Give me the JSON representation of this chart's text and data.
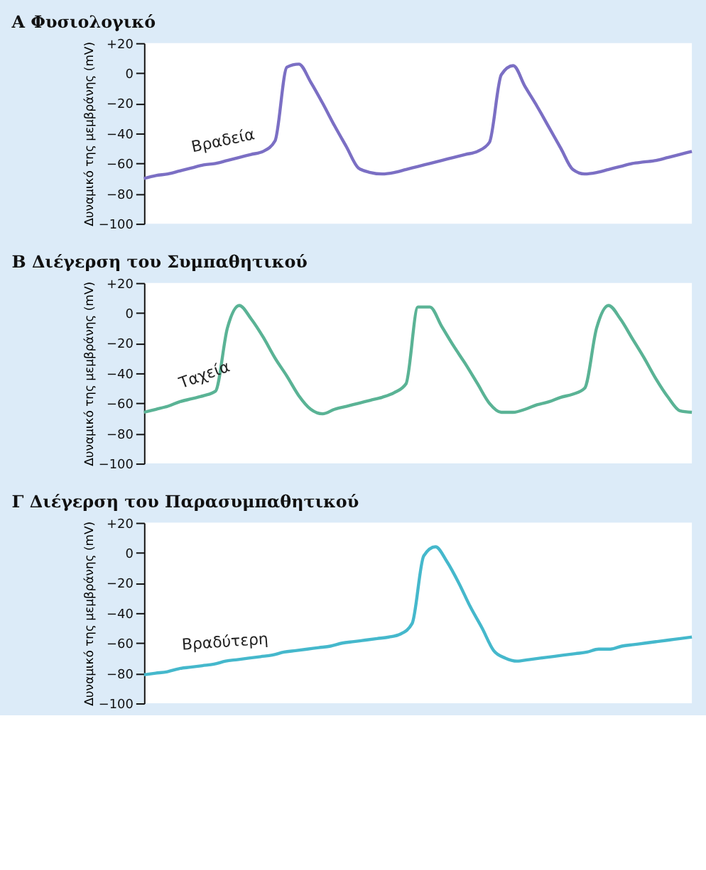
{
  "chart_data": [
    {
      "type": "line",
      "title": "A  Φυσιολογικό",
      "ylabel": "Δυναμικό της μεμβράνης (mV)",
      "categories": [
        null,
        null,
        null,
        null,
        null,
        null,
        null,
        null,
        null,
        null,
        null,
        null,
        null,
        null,
        null,
        null,
        null,
        null,
        null,
        null,
        null,
        null,
        null,
        null,
        null,
        null,
        null,
        null,
        null,
        null,
        null,
        null,
        null,
        null,
        null,
        null,
        null,
        null,
        null,
        null,
        null,
        null,
        null,
        null,
        null,
        null,
        null
      ],
      "series": [
        {
          "color": "#7b6fc4",
          "values": [
            -70,
            -68,
            -67,
            -65,
            -63,
            -61,
            -60,
            -58,
            -56,
            -54,
            -52,
            -45,
            4,
            6,
            -6,
            -20,
            -35,
            -49,
            -63,
            -66,
            -67,
            -66,
            -64,
            -62,
            -60,
            -58,
            -56,
            -54,
            -52,
            -46,
            -1,
            5,
            -9,
            -22,
            -36,
            -50,
            -64,
            -67,
            -66,
            -64,
            -62,
            -60,
            -59,
            -58,
            -56,
            -54,
            -52
          ]
        }
      ],
      "ylim": [
        -100,
        20
      ],
      "yticks": [
        {
          "value": 20,
          "label": "+20"
        },
        0,
        {
          "value": -20,
          "label": "−20"
        },
        {
          "value": -40,
          "label": "−40"
        },
        {
          "value": -60,
          "label": "−60"
        },
        {
          "value": -80,
          "label": "−80"
        },
        {
          "value": -100,
          "label": "−100"
        }
      ],
      "tick_labels": "y",
      "annotations": [
        "Βραδεία"
      ]
    },
    {
      "type": "line",
      "title": "B  Διέγερση του Συμπαθητικού",
      "ylabel": "Δυναμικό της μεμβράνης (mV)",
      "categories": [
        null,
        null,
        null,
        null,
        null,
        null,
        null,
        null,
        null,
        null,
        null,
        null,
        null,
        null,
        null,
        null,
        null,
        null,
        null,
        null,
        null,
        null,
        null,
        null,
        null,
        null,
        null,
        null,
        null,
        null,
        null,
        null,
        null,
        null,
        null,
        null,
        null,
        null,
        null,
        null,
        null,
        null,
        null,
        null,
        null,
        null,
        null
      ],
      "series": [
        {
          "color": "#5ab395",
          "values": [
            -66,
            -64,
            -62,
            -59,
            -57,
            -55,
            -52,
            -10,
            5,
            -4,
            -16,
            -30,
            -42,
            -55,
            -64,
            -67,
            -64,
            -62,
            -60,
            -58,
            -56,
            -53,
            -47,
            4,
            4,
            -9,
            -22,
            -34,
            -47,
            -60,
            -66,
            -66,
            -64,
            -61,
            -59,
            -56,
            -54,
            -50,
            -10,
            5,
            -4,
            -17,
            -30,
            -44,
            -56,
            -65,
            -66
          ]
        }
      ],
      "ylim": [
        -100,
        20
      ],
      "yticks": [
        {
          "value": 20,
          "label": "+20"
        },
        0,
        {
          "value": -20,
          "label": "−20"
        },
        {
          "value": -40,
          "label": "−40"
        },
        {
          "value": -60,
          "label": "−60"
        },
        {
          "value": -80,
          "label": "−80"
        },
        {
          "value": -100,
          "label": "−100"
        }
      ],
      "tick_labels": "y",
      "annotations": [
        "Ταχεία"
      ]
    },
    {
      "type": "line",
      "title": "Γ  Διέγερση του Παρασυμπαθητικού",
      "ylabel": "Δυναμικό της μεμβράνης (mV)",
      "categories": [
        null,
        null,
        null,
        null,
        null,
        null,
        null,
        null,
        null,
        null,
        null,
        null,
        null,
        null,
        null,
        null,
        null,
        null,
        null,
        null,
        null,
        null,
        null,
        null,
        null,
        null,
        null,
        null,
        null,
        null,
        null,
        null,
        null,
        null,
        null,
        null,
        null,
        null,
        null,
        null,
        null,
        null,
        null,
        null,
        null,
        null,
        null,
        null
      ],
      "series": [
        {
          "color": "#45b8cc",
          "values": [
            -81,
            -80,
            -79,
            -77,
            -76,
            -75,
            -74,
            -72,
            -71,
            -70,
            -69,
            -68,
            -66,
            -65,
            -64,
            -63,
            -62,
            -60,
            -59,
            -58,
            -57,
            -56,
            -54,
            -47,
            -2,
            4,
            -6,
            -20,
            -36,
            -50,
            -65,
            -70,
            -72,
            -71,
            -70,
            -69,
            -68,
            -67,
            -66,
            -64,
            -64,
            -62,
            -61,
            -60,
            -59,
            -58,
            -57,
            -56
          ]
        }
      ],
      "ylim": [
        -100,
        20
      ],
      "yticks": [
        {
          "value": 20,
          "label": "+20"
        },
        0,
        {
          "value": -20,
          "label": "−20"
        },
        {
          "value": -40,
          "label": "−40"
        },
        {
          "value": -60,
          "label": "−60"
        },
        {
          "value": -80,
          "label": "−80"
        },
        {
          "value": -100,
          "label": "−100"
        }
      ],
      "tick_labels": "y",
      "annotations": [
        "Βραδύτερη"
      ]
    }
  ]
}
